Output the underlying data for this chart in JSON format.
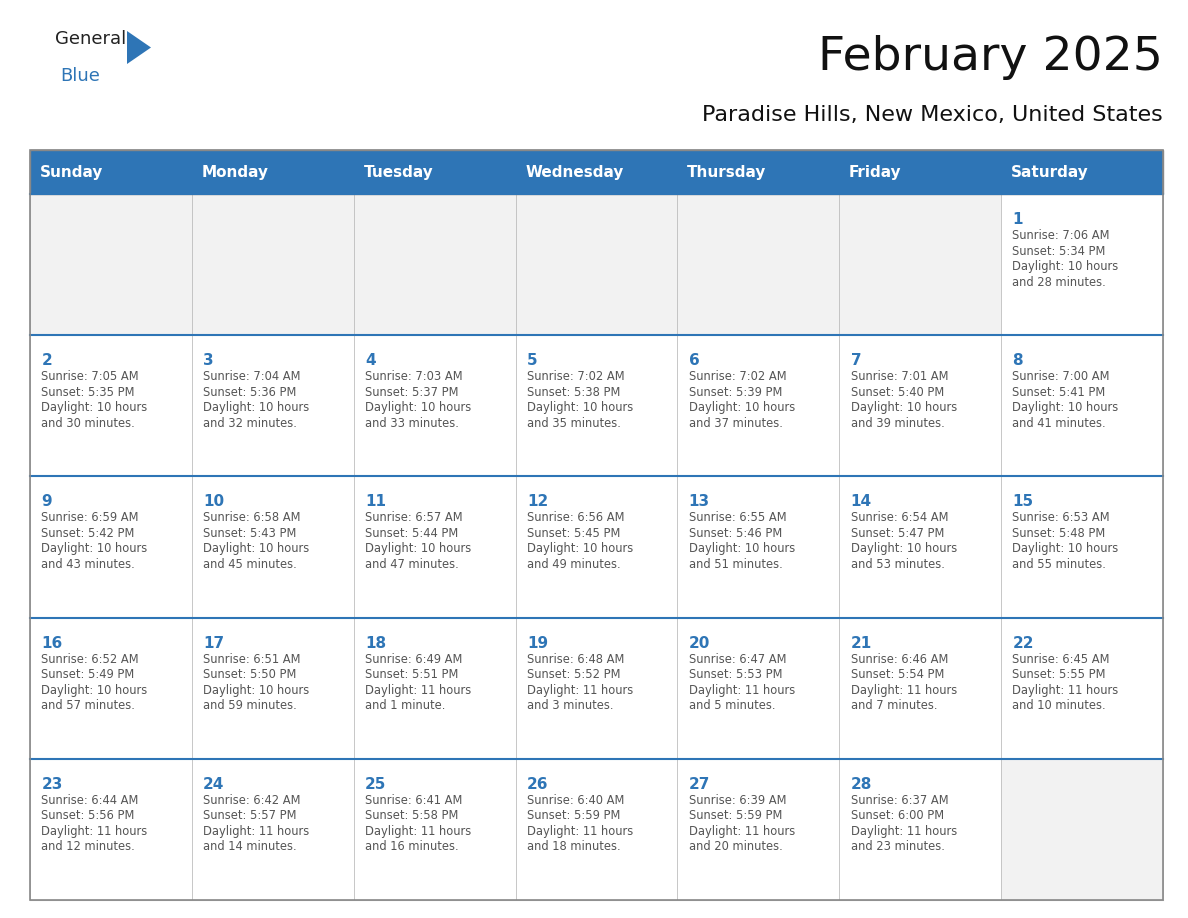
{
  "title": "February 2025",
  "subtitle": "Paradise Hills, New Mexico, United States",
  "days_of_week": [
    "Sunday",
    "Monday",
    "Tuesday",
    "Wednesday",
    "Thursday",
    "Friday",
    "Saturday"
  ],
  "header_bg": "#2E75B6",
  "header_text": "#FFFFFF",
  "cell_bg": "#FFFFFF",
  "empty_row_bg": "#F2F2F2",
  "cell_border_color": "#BBBBBB",
  "row_top_border_color": "#2E75B6",
  "day_num_color": "#2E75B6",
  "info_text_color": "#555555",
  "title_color": "#111111",
  "subtitle_color": "#111111",
  "logo_general_color": "#222222",
  "logo_blue_color": "#2E75B6",
  "logo_triangle_color": "#2E75B6",
  "weeks": [
    [
      {
        "day": "",
        "sunrise": "",
        "sunset": "",
        "daylight_line1": "",
        "daylight_line2": ""
      },
      {
        "day": "",
        "sunrise": "",
        "sunset": "",
        "daylight_line1": "",
        "daylight_line2": ""
      },
      {
        "day": "",
        "sunrise": "",
        "sunset": "",
        "daylight_line1": "",
        "daylight_line2": ""
      },
      {
        "day": "",
        "sunrise": "",
        "sunset": "",
        "daylight_line1": "",
        "daylight_line2": ""
      },
      {
        "day": "",
        "sunrise": "",
        "sunset": "",
        "daylight_line1": "",
        "daylight_line2": ""
      },
      {
        "day": "",
        "sunrise": "",
        "sunset": "",
        "daylight_line1": "",
        "daylight_line2": ""
      },
      {
        "day": "1",
        "sunrise": "Sunrise: 7:06 AM",
        "sunset": "Sunset: 5:34 PM",
        "daylight_line1": "Daylight: 10 hours",
        "daylight_line2": "and 28 minutes."
      }
    ],
    [
      {
        "day": "2",
        "sunrise": "Sunrise: 7:05 AM",
        "sunset": "Sunset: 5:35 PM",
        "daylight_line1": "Daylight: 10 hours",
        "daylight_line2": "and 30 minutes."
      },
      {
        "day": "3",
        "sunrise": "Sunrise: 7:04 AM",
        "sunset": "Sunset: 5:36 PM",
        "daylight_line1": "Daylight: 10 hours",
        "daylight_line2": "and 32 minutes."
      },
      {
        "day": "4",
        "sunrise": "Sunrise: 7:03 AM",
        "sunset": "Sunset: 5:37 PM",
        "daylight_line1": "Daylight: 10 hours",
        "daylight_line2": "and 33 minutes."
      },
      {
        "day": "5",
        "sunrise": "Sunrise: 7:02 AM",
        "sunset": "Sunset: 5:38 PM",
        "daylight_line1": "Daylight: 10 hours",
        "daylight_line2": "and 35 minutes."
      },
      {
        "day": "6",
        "sunrise": "Sunrise: 7:02 AM",
        "sunset": "Sunset: 5:39 PM",
        "daylight_line1": "Daylight: 10 hours",
        "daylight_line2": "and 37 minutes."
      },
      {
        "day": "7",
        "sunrise": "Sunrise: 7:01 AM",
        "sunset": "Sunset: 5:40 PM",
        "daylight_line1": "Daylight: 10 hours",
        "daylight_line2": "and 39 minutes."
      },
      {
        "day": "8",
        "sunrise": "Sunrise: 7:00 AM",
        "sunset": "Sunset: 5:41 PM",
        "daylight_line1": "Daylight: 10 hours",
        "daylight_line2": "and 41 minutes."
      }
    ],
    [
      {
        "day": "9",
        "sunrise": "Sunrise: 6:59 AM",
        "sunset": "Sunset: 5:42 PM",
        "daylight_line1": "Daylight: 10 hours",
        "daylight_line2": "and 43 minutes."
      },
      {
        "day": "10",
        "sunrise": "Sunrise: 6:58 AM",
        "sunset": "Sunset: 5:43 PM",
        "daylight_line1": "Daylight: 10 hours",
        "daylight_line2": "and 45 minutes."
      },
      {
        "day": "11",
        "sunrise": "Sunrise: 6:57 AM",
        "sunset": "Sunset: 5:44 PM",
        "daylight_line1": "Daylight: 10 hours",
        "daylight_line2": "and 47 minutes."
      },
      {
        "day": "12",
        "sunrise": "Sunrise: 6:56 AM",
        "sunset": "Sunset: 5:45 PM",
        "daylight_line1": "Daylight: 10 hours",
        "daylight_line2": "and 49 minutes."
      },
      {
        "day": "13",
        "sunrise": "Sunrise: 6:55 AM",
        "sunset": "Sunset: 5:46 PM",
        "daylight_line1": "Daylight: 10 hours",
        "daylight_line2": "and 51 minutes."
      },
      {
        "day": "14",
        "sunrise": "Sunrise: 6:54 AM",
        "sunset": "Sunset: 5:47 PM",
        "daylight_line1": "Daylight: 10 hours",
        "daylight_line2": "and 53 minutes."
      },
      {
        "day": "15",
        "sunrise": "Sunrise: 6:53 AM",
        "sunset": "Sunset: 5:48 PM",
        "daylight_line1": "Daylight: 10 hours",
        "daylight_line2": "and 55 minutes."
      }
    ],
    [
      {
        "day": "16",
        "sunrise": "Sunrise: 6:52 AM",
        "sunset": "Sunset: 5:49 PM",
        "daylight_line1": "Daylight: 10 hours",
        "daylight_line2": "and 57 minutes."
      },
      {
        "day": "17",
        "sunrise": "Sunrise: 6:51 AM",
        "sunset": "Sunset: 5:50 PM",
        "daylight_line1": "Daylight: 10 hours",
        "daylight_line2": "and 59 minutes."
      },
      {
        "day": "18",
        "sunrise": "Sunrise: 6:49 AM",
        "sunset": "Sunset: 5:51 PM",
        "daylight_line1": "Daylight: 11 hours",
        "daylight_line2": "and 1 minute."
      },
      {
        "day": "19",
        "sunrise": "Sunrise: 6:48 AM",
        "sunset": "Sunset: 5:52 PM",
        "daylight_line1": "Daylight: 11 hours",
        "daylight_line2": "and 3 minutes."
      },
      {
        "day": "20",
        "sunrise": "Sunrise: 6:47 AM",
        "sunset": "Sunset: 5:53 PM",
        "daylight_line1": "Daylight: 11 hours",
        "daylight_line2": "and 5 minutes."
      },
      {
        "day": "21",
        "sunrise": "Sunrise: 6:46 AM",
        "sunset": "Sunset: 5:54 PM",
        "daylight_line1": "Daylight: 11 hours",
        "daylight_line2": "and 7 minutes."
      },
      {
        "day": "22",
        "sunrise": "Sunrise: 6:45 AM",
        "sunset": "Sunset: 5:55 PM",
        "daylight_line1": "Daylight: 11 hours",
        "daylight_line2": "and 10 minutes."
      }
    ],
    [
      {
        "day": "23",
        "sunrise": "Sunrise: 6:44 AM",
        "sunset": "Sunset: 5:56 PM",
        "daylight_line1": "Daylight: 11 hours",
        "daylight_line2": "and 12 minutes."
      },
      {
        "day": "24",
        "sunrise": "Sunrise: 6:42 AM",
        "sunset": "Sunset: 5:57 PM",
        "daylight_line1": "Daylight: 11 hours",
        "daylight_line2": "and 14 minutes."
      },
      {
        "day": "25",
        "sunrise": "Sunrise: 6:41 AM",
        "sunset": "Sunset: 5:58 PM",
        "daylight_line1": "Daylight: 11 hours",
        "daylight_line2": "and 16 minutes."
      },
      {
        "day": "26",
        "sunrise": "Sunrise: 6:40 AM",
        "sunset": "Sunset: 5:59 PM",
        "daylight_line1": "Daylight: 11 hours",
        "daylight_line2": "and 18 minutes."
      },
      {
        "day": "27",
        "sunrise": "Sunrise: 6:39 AM",
        "sunset": "Sunset: 5:59 PM",
        "daylight_line1": "Daylight: 11 hours",
        "daylight_line2": "and 20 minutes."
      },
      {
        "day": "28",
        "sunrise": "Sunrise: 6:37 AM",
        "sunset": "Sunset: 6:00 PM",
        "daylight_line1": "Daylight: 11 hours",
        "daylight_line2": "and 23 minutes."
      },
      {
        "day": "",
        "sunrise": "",
        "sunset": "",
        "daylight_line1": "",
        "daylight_line2": ""
      }
    ]
  ]
}
